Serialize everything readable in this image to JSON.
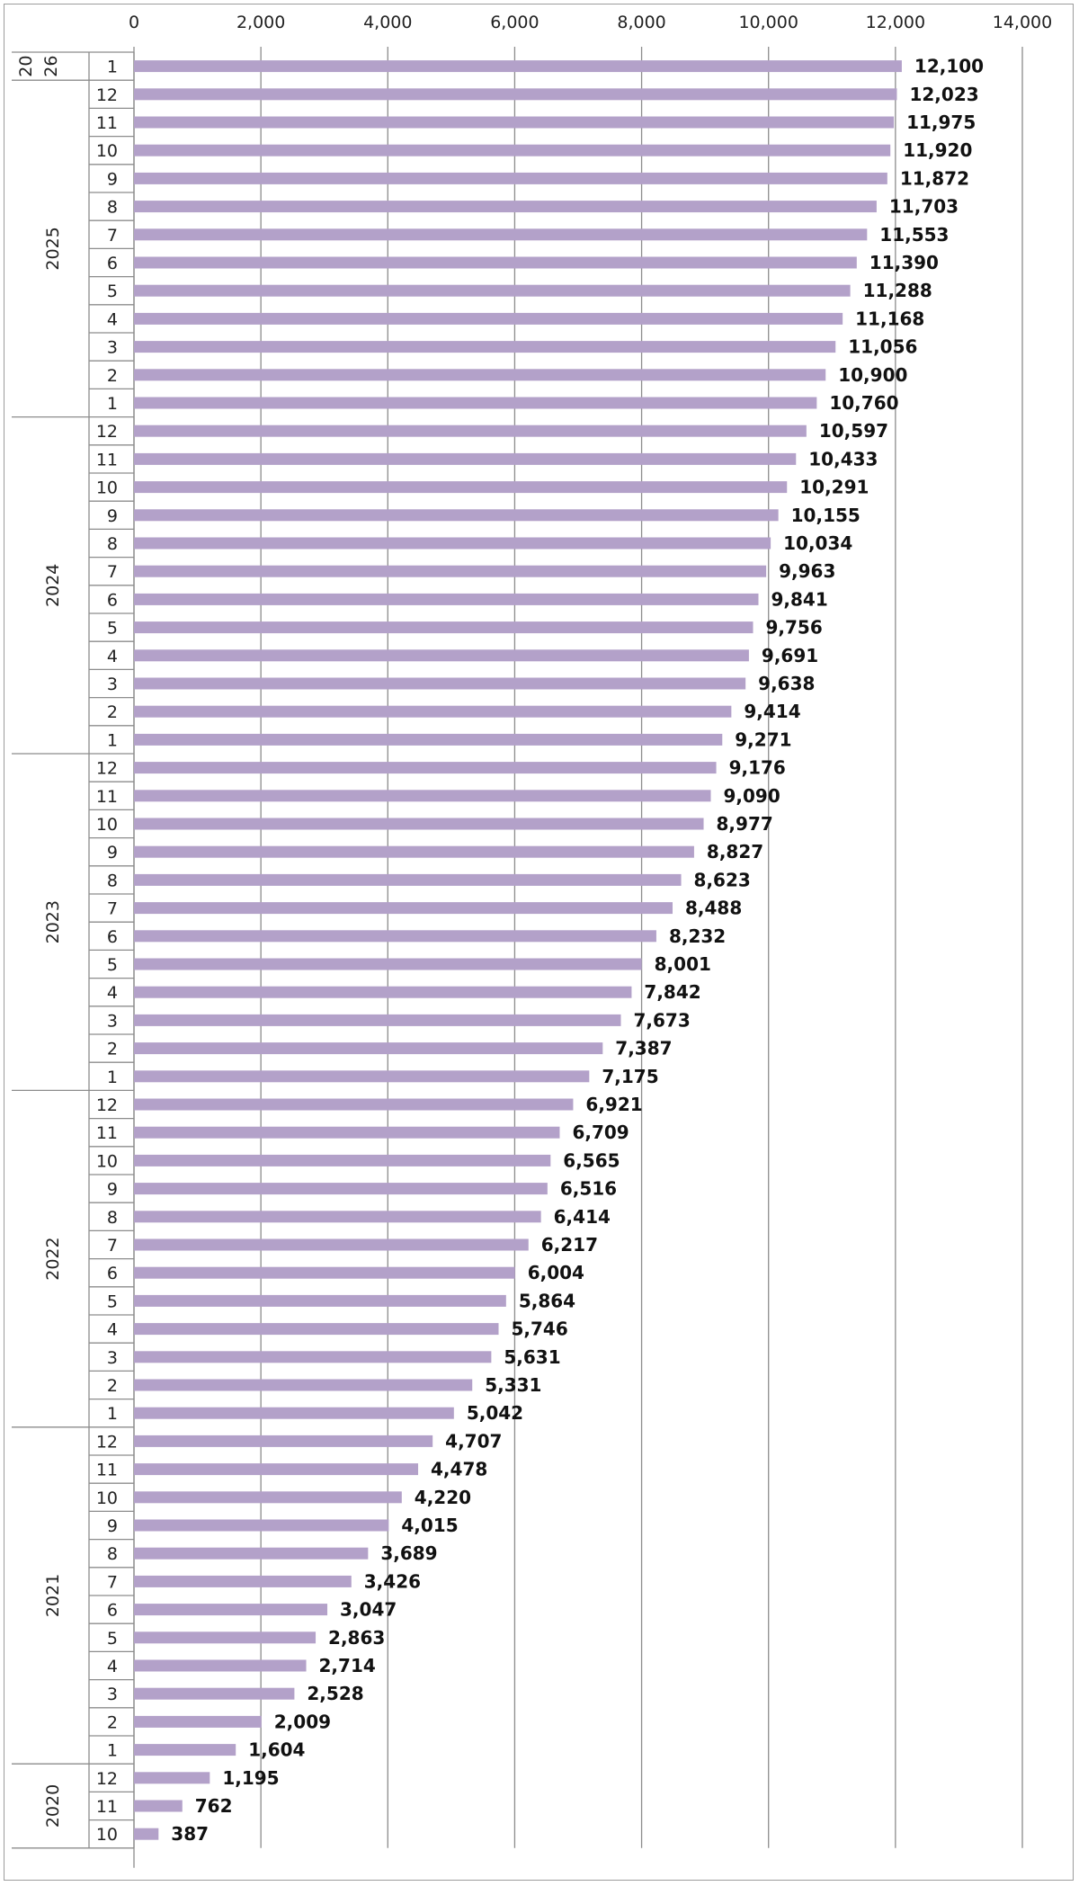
{
  "chart_data": {
    "type": "bar",
    "orientation": "horizontal",
    "title": "",
    "xlabel": "",
    "ylabel": "",
    "xlim": [
      0,
      14000
    ],
    "x_ticks": [
      "0",
      "2,000",
      "4,000",
      "6,000",
      "8,000",
      "10,000",
      "12,000",
      "14,000"
    ],
    "x_tick_values": [
      0,
      2000,
      4000,
      6000,
      8000,
      10000,
      12000,
      14000
    ],
    "x_axis_position": "top",
    "grid": true,
    "bar_color": "#b3a1c9",
    "data_labels": true,
    "groups": [
      {
        "year": "2026",
        "year_lines": [
          "20",
          "26"
        ],
        "categories": [
          {
            "month": "1",
            "value": 12100,
            "label": "12,100"
          }
        ]
      },
      {
        "year": "2025",
        "categories": [
          {
            "month": "12",
            "value": 12023,
            "label": "12,023"
          },
          {
            "month": "11",
            "value": 11975,
            "label": "11,975"
          },
          {
            "month": "10",
            "value": 11920,
            "label": "11,920"
          },
          {
            "month": "9",
            "value": 11872,
            "label": "11,872"
          },
          {
            "month": "8",
            "value": 11703,
            "label": "11,703"
          },
          {
            "month": "7",
            "value": 11553,
            "label": "11,553"
          },
          {
            "month": "6",
            "value": 11390,
            "label": "11,390"
          },
          {
            "month": "5",
            "value": 11288,
            "label": "11,288"
          },
          {
            "month": "4",
            "value": 11168,
            "label": "11,168"
          },
          {
            "month": "3",
            "value": 11056,
            "label": "11,056"
          },
          {
            "month": "2",
            "value": 10900,
            "label": "10,900"
          },
          {
            "month": "1",
            "value": 10760,
            "label": "10,760"
          }
        ]
      },
      {
        "year": "2024",
        "categories": [
          {
            "month": "12",
            "value": 10597,
            "label": "10,597"
          },
          {
            "month": "11",
            "value": 10433,
            "label": "10,433"
          },
          {
            "month": "10",
            "value": 10291,
            "label": "10,291"
          },
          {
            "month": "9",
            "value": 10155,
            "label": "10,155"
          },
          {
            "month": "8",
            "value": 10034,
            "label": "10,034"
          },
          {
            "month": "7",
            "value": 9963,
            "label": "9,963"
          },
          {
            "month": "6",
            "value": 9841,
            "label": "9,841"
          },
          {
            "month": "5",
            "value": 9756,
            "label": "9,756"
          },
          {
            "month": "4",
            "value": 9691,
            "label": "9,691"
          },
          {
            "month": "3",
            "value": 9638,
            "label": "9,638"
          },
          {
            "month": "2",
            "value": 9414,
            "label": "9,414"
          },
          {
            "month": "1",
            "value": 9271,
            "label": "9,271"
          }
        ]
      },
      {
        "year": "2023",
        "categories": [
          {
            "month": "12",
            "value": 9176,
            "label": "9,176"
          },
          {
            "month": "11",
            "value": 9090,
            "label": "9,090"
          },
          {
            "month": "10",
            "value": 8977,
            "label": "8,977"
          },
          {
            "month": "9",
            "value": 8827,
            "label": "8,827"
          },
          {
            "month": "8",
            "value": 8623,
            "label": "8,623"
          },
          {
            "month": "7",
            "value": 8488,
            "label": "8,488"
          },
          {
            "month": "6",
            "value": 8232,
            "label": "8,232"
          },
          {
            "month": "5",
            "value": 8001,
            "label": "8,001"
          },
          {
            "month": "4",
            "value": 7842,
            "label": "7,842"
          },
          {
            "month": "3",
            "value": 7673,
            "label": "7,673"
          },
          {
            "month": "2",
            "value": 7387,
            "label": "7,387"
          },
          {
            "month": "1",
            "value": 7175,
            "label": "7,175"
          }
        ]
      },
      {
        "year": "2022",
        "categories": [
          {
            "month": "12",
            "value": 6921,
            "label": "6,921"
          },
          {
            "month": "11",
            "value": 6709,
            "label": "6,709"
          },
          {
            "month": "10",
            "value": 6565,
            "label": "6,565"
          },
          {
            "month": "9",
            "value": 6516,
            "label": "6,516"
          },
          {
            "month": "8",
            "value": 6414,
            "label": "6,414"
          },
          {
            "month": "7",
            "value": 6217,
            "label": "6,217"
          },
          {
            "month": "6",
            "value": 6004,
            "label": "6,004"
          },
          {
            "month": "5",
            "value": 5864,
            "label": "5,864"
          },
          {
            "month": "4",
            "value": 5746,
            "label": "5,746"
          },
          {
            "month": "3",
            "value": 5631,
            "label": "5,631"
          },
          {
            "month": "2",
            "value": 5331,
            "label": "5,331"
          },
          {
            "month": "1",
            "value": 5042,
            "label": "5,042"
          }
        ]
      },
      {
        "year": "2021",
        "categories": [
          {
            "month": "12",
            "value": 4707,
            "label": "4,707"
          },
          {
            "month": "11",
            "value": 4478,
            "label": "4,478"
          },
          {
            "month": "10",
            "value": 4220,
            "label": "4,220"
          },
          {
            "month": "9",
            "value": 4015,
            "label": "4,015"
          },
          {
            "month": "8",
            "value": 3689,
            "label": "3,689"
          },
          {
            "month": "7",
            "value": 3426,
            "label": "3,426"
          },
          {
            "month": "6",
            "value": 3047,
            "label": "3,047"
          },
          {
            "month": "5",
            "value": 2863,
            "label": "2,863"
          },
          {
            "month": "4",
            "value": 2714,
            "label": "2,714"
          },
          {
            "month": "3",
            "value": 2528,
            "label": "2,528"
          },
          {
            "month": "2",
            "value": 2009,
            "label": "2,009"
          },
          {
            "month": "1",
            "value": 1604,
            "label": "1,604"
          }
        ]
      },
      {
        "year": "2020",
        "categories": [
          {
            "month": "12",
            "value": 1195,
            "label": "1,195"
          },
          {
            "month": "11",
            "value": 762,
            "label": "762"
          },
          {
            "month": "10",
            "value": 387,
            "label": "387"
          }
        ]
      }
    ]
  }
}
